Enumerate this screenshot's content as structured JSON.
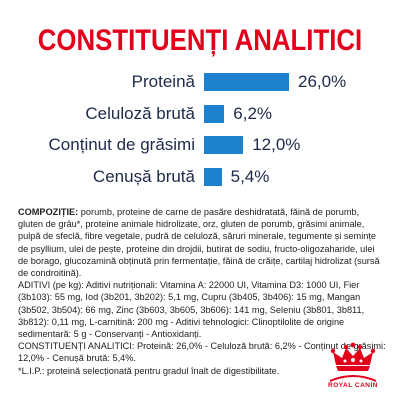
{
  "header": {
    "title": "CONSTITUENȚI ANALITICI"
  },
  "chart_data": {
    "type": "bar",
    "categories": [
      "Proteină",
      "Celuloză brută",
      "Conținut de grăsimi",
      "Cenușă brută"
    ],
    "values": [
      26.0,
      6.2,
      12.0,
      5.4
    ],
    "value_labels": [
      "26,0%",
      "6,2%",
      "12,0%",
      "5,4%"
    ],
    "title": "",
    "xlabel": "",
    "ylabel": "",
    "xlim": [
      0,
      30
    ],
    "grid": false,
    "legend": "none",
    "bar_color": "#1c82d0",
    "label_color": "#1e2a4a"
  },
  "composition": {
    "comp_heading": "COMPOZIȚIE:",
    "comp_text": " porumb, proteine de carne de pasăre deshidratată, făină de porumb, gluten de grâu*, proteine animale hidrolizate, orz, gluten de porumb, grăsimi animale, pulpă de sfeclă, fibre vegetale, pudră de celuloză, săruri minerale, tegumente și semințe de psyllium, ulei de pește, proteine din drojdii, butirat de sodiu, fructo-oligozaharide, ulei de borago, glucozamină obținută prin fermentație, făină de crăițe, cartilaj hidrolizat (sursă de condroitină).",
    "additives_text": "ADITIVI (pe kg): Aditivi nutriționali: Vitamina A: 22000 UI, Vitamina D3: 1000 UI, Fier (3b103): 55 mg, Iod (3b201, 3b202): 5,1 mg, Cupru (3b405, 3b406): 15 mg, Mangan (3b502, 3b504): 66 mg, Zinc (3b603, 3b605, 3b606): 141 mg, Seleniu (3b801, 3b811, 3b812): 0,11 mg, L-carnitină: 200 mg - Aditivi tehnologici: Clinoptilolite de origine sedimentară: 5 g - Conservanți - Antioxidanți.",
    "analytic_heading": "CONSTITUENȚI ANALITICI:",
    "analytic_text": " Proteină: 26,0% - Celuloză brută: 6,2% - Conținut de grăsimi: 12,0% - Cenușă brută: 5,4%.",
    "footnote": "*L.I.P.: proteină selecționată pentru gradul înalt de digestibilitate."
  },
  "brand": {
    "logo_text": "ROYAL CANIN",
    "logo_color": "#e2001a"
  }
}
